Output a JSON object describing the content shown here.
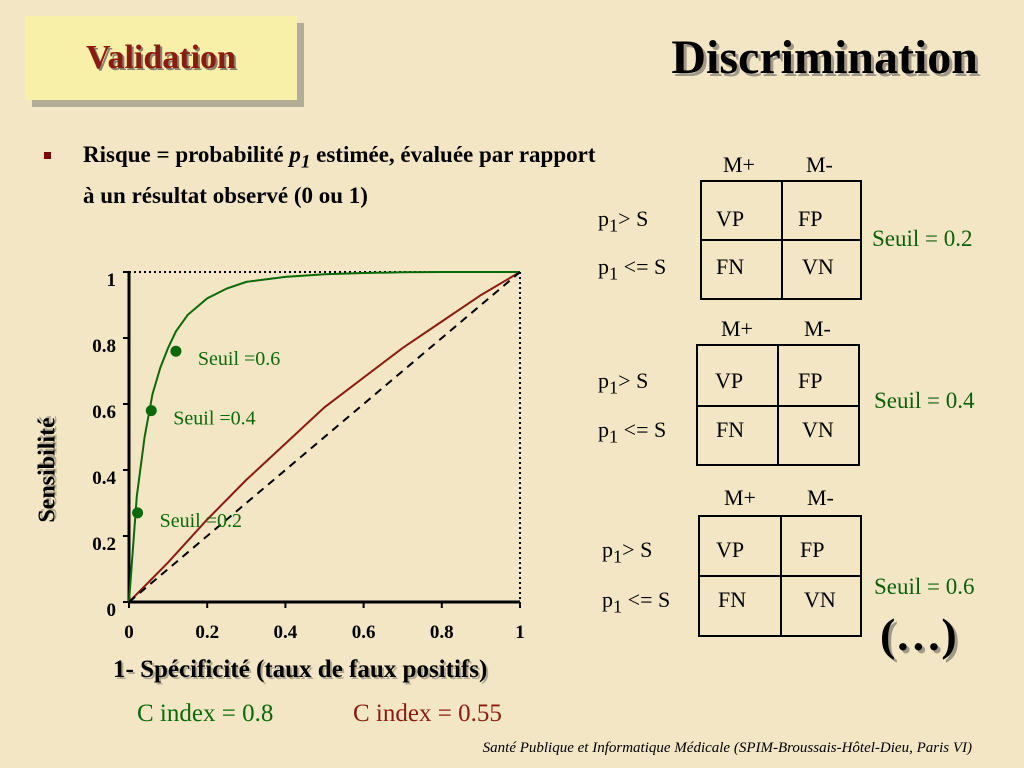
{
  "badge": {
    "label": "Validation"
  },
  "title": "Discrimination",
  "bullet": {
    "prefix": "Risque = probabilité ",
    "var": "p",
    "sub": "1",
    "suffix": " estimée, évaluée par rapport à un résultat observé (0 ou 1)"
  },
  "matrices": [
    {
      "col_pos": "M+",
      "col_neg": "M-",
      "row1": "p",
      "row1_sub": "1",
      "row1_rest": "> S",
      "row2": "p",
      "row2_sub": "1",
      "row2_rest": " <= S",
      "vp": "VP",
      "fp": "FP",
      "fn": "FN",
      "vn": "VN",
      "seuil": "Seuil = 0.2"
    },
    {
      "col_pos": "M+",
      "col_neg": "M-",
      "row1": "p",
      "row1_sub": "1",
      "row1_rest": "> S",
      "row2": "p",
      "row2_sub": "1",
      "row2_rest": " <= S",
      "vp": "VP",
      "fp": "FP",
      "fn": "FN",
      "vn": "VN",
      "seuil": "Seuil = 0.4"
    },
    {
      "col_pos": "M+",
      "col_neg": "M-",
      "row1": "p",
      "row1_sub": "1",
      "row1_rest": "> S",
      "row2": "p",
      "row2_sub": "1",
      "row2_rest": " <= S",
      "vp": "VP",
      "fp": "FP",
      "fn": "FN",
      "vn": "VN",
      "seuil": "Seuil = 0.6"
    }
  ],
  "ellipsis": "(…)",
  "cindex": {
    "green": "C index = 0.8",
    "red": "C index = 0.55"
  },
  "footer": "Santé Publique et Informatique Médicale (SPIM-Broussais-Hôtel-Dieu, Paris VI)",
  "colors": {
    "green": "#0a6a0a",
    "red": "#8b1a10",
    "dashed": "#000000"
  },
  "chart_data": {
    "type": "line",
    "xlabel": "1- Spécificité (taux de faux positifs)",
    "ylabel": "Sensibilité",
    "xlim": [
      0,
      1
    ],
    "ylim": [
      0,
      1
    ],
    "x_ticks": [
      "0",
      "0.2",
      "0.4",
      "0.6",
      "0.8",
      "1"
    ],
    "y_ticks": [
      "0",
      "0.2",
      "0.4",
      "0.6",
      "0.8",
      "1"
    ],
    "series": [
      {
        "name": "C index = 0.8",
        "color": "#0a6a0a",
        "x": [
          0,
          0.02,
          0.04,
          0.06,
          0.08,
          0.1,
          0.12,
          0.15,
          0.2,
          0.25,
          0.3,
          0.4,
          0.5,
          0.6,
          0.7,
          0.8,
          0.9,
          1
        ],
        "y": [
          0,
          0.32,
          0.5,
          0.63,
          0.71,
          0.77,
          0.82,
          0.87,
          0.92,
          0.95,
          0.97,
          0.985,
          0.993,
          0.997,
          0.999,
          1,
          1,
          1
        ]
      },
      {
        "name": "C index = 0.55",
        "color": "#8b1a10",
        "x": [
          0,
          0.1,
          0.2,
          0.3,
          0.4,
          0.5,
          0.6,
          0.7,
          0.8,
          0.9,
          1
        ],
        "y": [
          0,
          0.12,
          0.25,
          0.37,
          0.48,
          0.59,
          0.68,
          0.77,
          0.85,
          0.93,
          1
        ]
      },
      {
        "name": "",
        "color": "#000000",
        "dashed": true,
        "x": [
          0,
          1
        ],
        "y": [
          0,
          1
        ]
      }
    ],
    "points": [
      {
        "label": "Seuil =0.6",
        "x": 0.12,
        "y": 0.76
      },
      {
        "label": "Seuil =0.4",
        "x": 0.057,
        "y": 0.58
      },
      {
        "label": "Seuil =0.2",
        "x": 0.022,
        "y": 0.27
      }
    ]
  }
}
